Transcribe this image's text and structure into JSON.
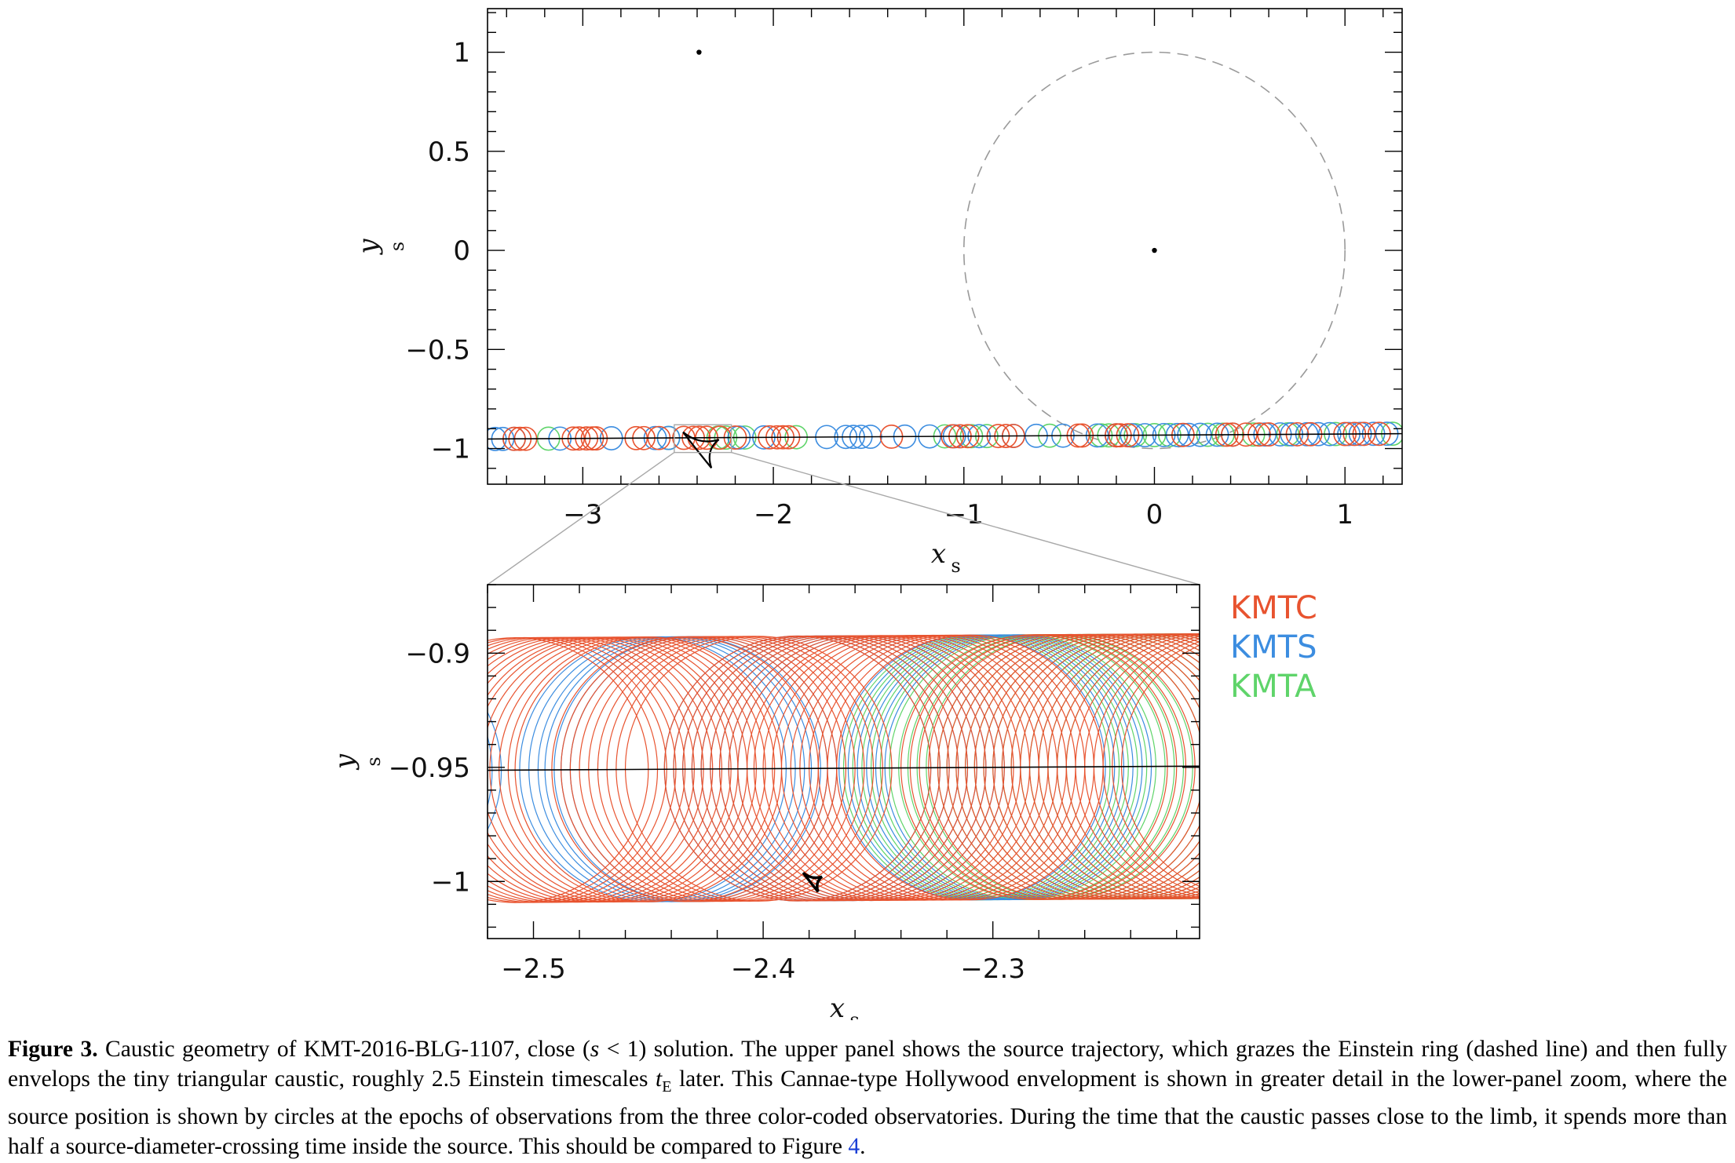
{
  "chart_data": [
    {
      "type": "scatter",
      "panel": "upper",
      "xlabel": "x",
      "xlabel_sub": "s",
      "ylabel": "y",
      "ylabel_sub": "s",
      "xlim": [
        -3.5,
        1.3
      ],
      "ylim": [
        -1.18,
        1.22
      ],
      "xticks": [
        -3,
        -2,
        -1,
        0,
        1
      ],
      "xtick_labels": [
        "−3",
        "−2",
        "−1",
        "0",
        "1"
      ],
      "yticks": [
        1,
        0.5,
        0,
        -0.5,
        -1
      ],
      "ytick_labels": [
        "1",
        "0.5",
        "0",
        "−0.5",
        "−1"
      ],
      "einstein_ring": {
        "center": [
          0,
          0
        ],
        "radius": 1.0,
        "style": "dashed"
      },
      "lens_points": [
        [
          -2.39,
          1.0
        ],
        [
          0.0,
          0.0
        ]
      ],
      "caustic_center": [
        -2.38,
        -1.0
      ],
      "trajectory": {
        "x": [
          -3.5,
          1.3
        ],
        "y": [
          -0.952,
          -0.925
        ]
      },
      "source_radius": 0.058,
      "source_circles": [
        {
          "series": "KMTS",
          "x": [
            -3.46,
            -3.42,
            -3.36,
            -3.12,
            -2.85,
            -2.62,
            -2.55,
            -2.18,
            -2.05,
            -1.72,
            -1.62,
            -1.58,
            -1.54,
            -1.49,
            -1.31,
            -1.18,
            -1.05,
            -0.92,
            -0.74,
            -0.62,
            -0.48,
            -0.3,
            -0.2,
            -0.12,
            -0.05,
            0.05,
            0.12,
            0.18,
            0.24,
            0.33,
            0.41,
            0.58,
            0.66,
            0.72,
            0.8,
            0.86,
            0.92,
            1.02,
            1.08,
            1.15,
            1.22
          ]
        },
        {
          "series": "KMTC",
          "x": [
            -3.36,
            -3.33,
            -3.3,
            -3.05,
            -3.02,
            -2.98,
            -2.95,
            -2.93,
            -2.72,
            -2.68,
            -2.6,
            -2.47,
            -2.42,
            -2.39,
            -2.35,
            -2.28,
            -2.2,
            -2.02,
            -1.98,
            -1.95,
            -1.92,
            -1.38,
            -1.06,
            -1.02,
            -0.98,
            -0.82,
            -0.78,
            -0.74,
            -0.4,
            -0.38,
            -0.2,
            -0.18,
            -0.14,
            0.15,
            0.38,
            0.41,
            0.48,
            0.55,
            0.6,
            0.75,
            0.82,
            1.0,
            1.05,
            1.1,
            1.18
          ]
        },
        {
          "series": "KMTA",
          "x": [
            -3.18,
            -2.55,
            -2.29,
            -2.25,
            -2.15,
            -1.88,
            -1.1,
            -0.96,
            -0.88,
            -0.55,
            -0.28,
            -0.24,
            -0.1,
            0.0,
            0.08,
            0.28,
            0.36,
            0.52,
            0.7,
            0.95,
            1.25
          ]
        }
      ],
      "zoom_box": {
        "x": [
          -2.52,
          -2.22
        ],
        "y": [
          -1.02,
          -0.88
        ]
      }
    },
    {
      "type": "scatter",
      "panel": "lower",
      "xlabel": "x",
      "xlabel_sub": "s",
      "ylabel": "y",
      "ylabel_sub": "s",
      "xlim": [
        -2.52,
        -2.21
      ],
      "ylim": [
        -1.025,
        -0.87
      ],
      "xticks": [
        -2.5,
        -2.4,
        -2.3
      ],
      "xtick_labels": [
        "−2.5",
        "−2.4",
        "−2.3"
      ],
      "yticks": [
        -0.9,
        -0.95,
        -1
      ],
      "ytick_labels": [
        "−0.9",
        "−0.95",
        "−1"
      ],
      "trajectory": {
        "x": [
          -2.52,
          -2.21
        ],
        "y": [
          -0.9513,
          -0.9495
        ]
      },
      "source_radius": 0.058,
      "caustic_center": [
        -2.3785,
        -1.0
      ],
      "source_circles": [
        {
          "series": "KMTS",
          "x": [
            -2.587,
            -2.583,
            -2.58,
            -2.576,
            -2.572,
            -2.448,
            -2.444,
            -2.44,
            -2.437,
            -2.433,
            -2.43,
            -2.426,
            -2.385,
            -2.381,
            -2.377,
            -2.373,
            -2.369,
            -2.365,
            -2.361,
            -2.357,
            -2.353,
            -2.309,
            -2.305,
            -2.301,
            -2.297,
            -2.293,
            -2.289
          ]
        },
        {
          "series": "KMTC",
          "x": [
            -2.508,
            -2.504,
            -2.5,
            -2.496,
            -2.492,
            -2.488,
            -2.484,
            -2.48,
            -2.476,
            -2.472,
            -2.469,
            -2.465,
            -2.461,
            -2.457,
            -2.453,
            -2.45,
            -2.434,
            -2.43,
            -2.426,
            -2.422,
            -2.418,
            -2.414,
            -2.41,
            -2.406,
            -2.402,
            -2.385,
            -2.381,
            -2.377,
            -2.373,
            -2.369,
            -2.365,
            -2.361,
            -2.357,
            -2.353,
            -2.349,
            -2.346,
            -2.342,
            -2.338,
            -2.334,
            -2.33,
            -2.326,
            -2.322,
            -2.318,
            -2.314,
            -2.31,
            -2.282,
            -2.278,
            -2.274,
            -2.27,
            -2.266,
            -2.262,
            -2.258,
            -2.254,
            -2.25,
            -2.246,
            -2.242,
            -2.238,
            -2.234,
            -2.23,
            -2.226,
            -2.222,
            -2.218,
            -2.214,
            -2.21,
            -2.206,
            -2.202,
            -2.198,
            -2.194,
            -2.19,
            -2.186
          ]
        },
        {
          "series": "KMTA",
          "x": [
            -2.307,
            -2.303,
            -2.299,
            -2.295,
            -2.291,
            -2.287,
            -2.283,
            -2.279,
            -2.275,
            -2.271,
            -2.266,
            -2.262,
            -2.258,
            -2.254,
            -2.25,
            -2.246,
            -2.242,
            -2.238,
            -2.234,
            -2.23,
            -2.226,
            -2.222,
            -2.218,
            -2.214,
            -2.21
          ]
        }
      ]
    }
  ],
  "legend": [
    {
      "label": "KMTC",
      "color": "#e8532f"
    },
    {
      "label": "KMTS",
      "color": "#3c8de0"
    },
    {
      "label": "KMTA",
      "color": "#5fd46a"
    }
  ],
  "colors": {
    "KMTC": "#e8532f",
    "KMTS": "#3c8de0",
    "KMTA": "#5fd46a",
    "ring": "#9a9a9a",
    "zoom_lines": "#a8a8a8"
  },
  "caption": {
    "label": "Figure 3.",
    "text_1": " Caustic geometry of KMT-2016-BLG-1107, close (",
    "s_var": "s",
    "text_2": " < 1) solution. The upper panel shows the source trajectory, which grazes the Einstein ring (dashed line) and then fully envelops the tiny triangular caustic, roughly 2.5 Einstein timescales ",
    "tE_var": "t",
    "tE_sub": "E",
    "text_3": " later. This Cannae-type Hollywood envelopment is shown in greater detail in the lower-panel zoom, where the source position is shown by circles at the epochs of observations from the three color-coded observatories. During the time that the caustic passes close to the limb, it spends more than half a source-diameter-crossing time inside the source. This should be compared to Figure ",
    "ref": "4",
    "text_4": "."
  }
}
